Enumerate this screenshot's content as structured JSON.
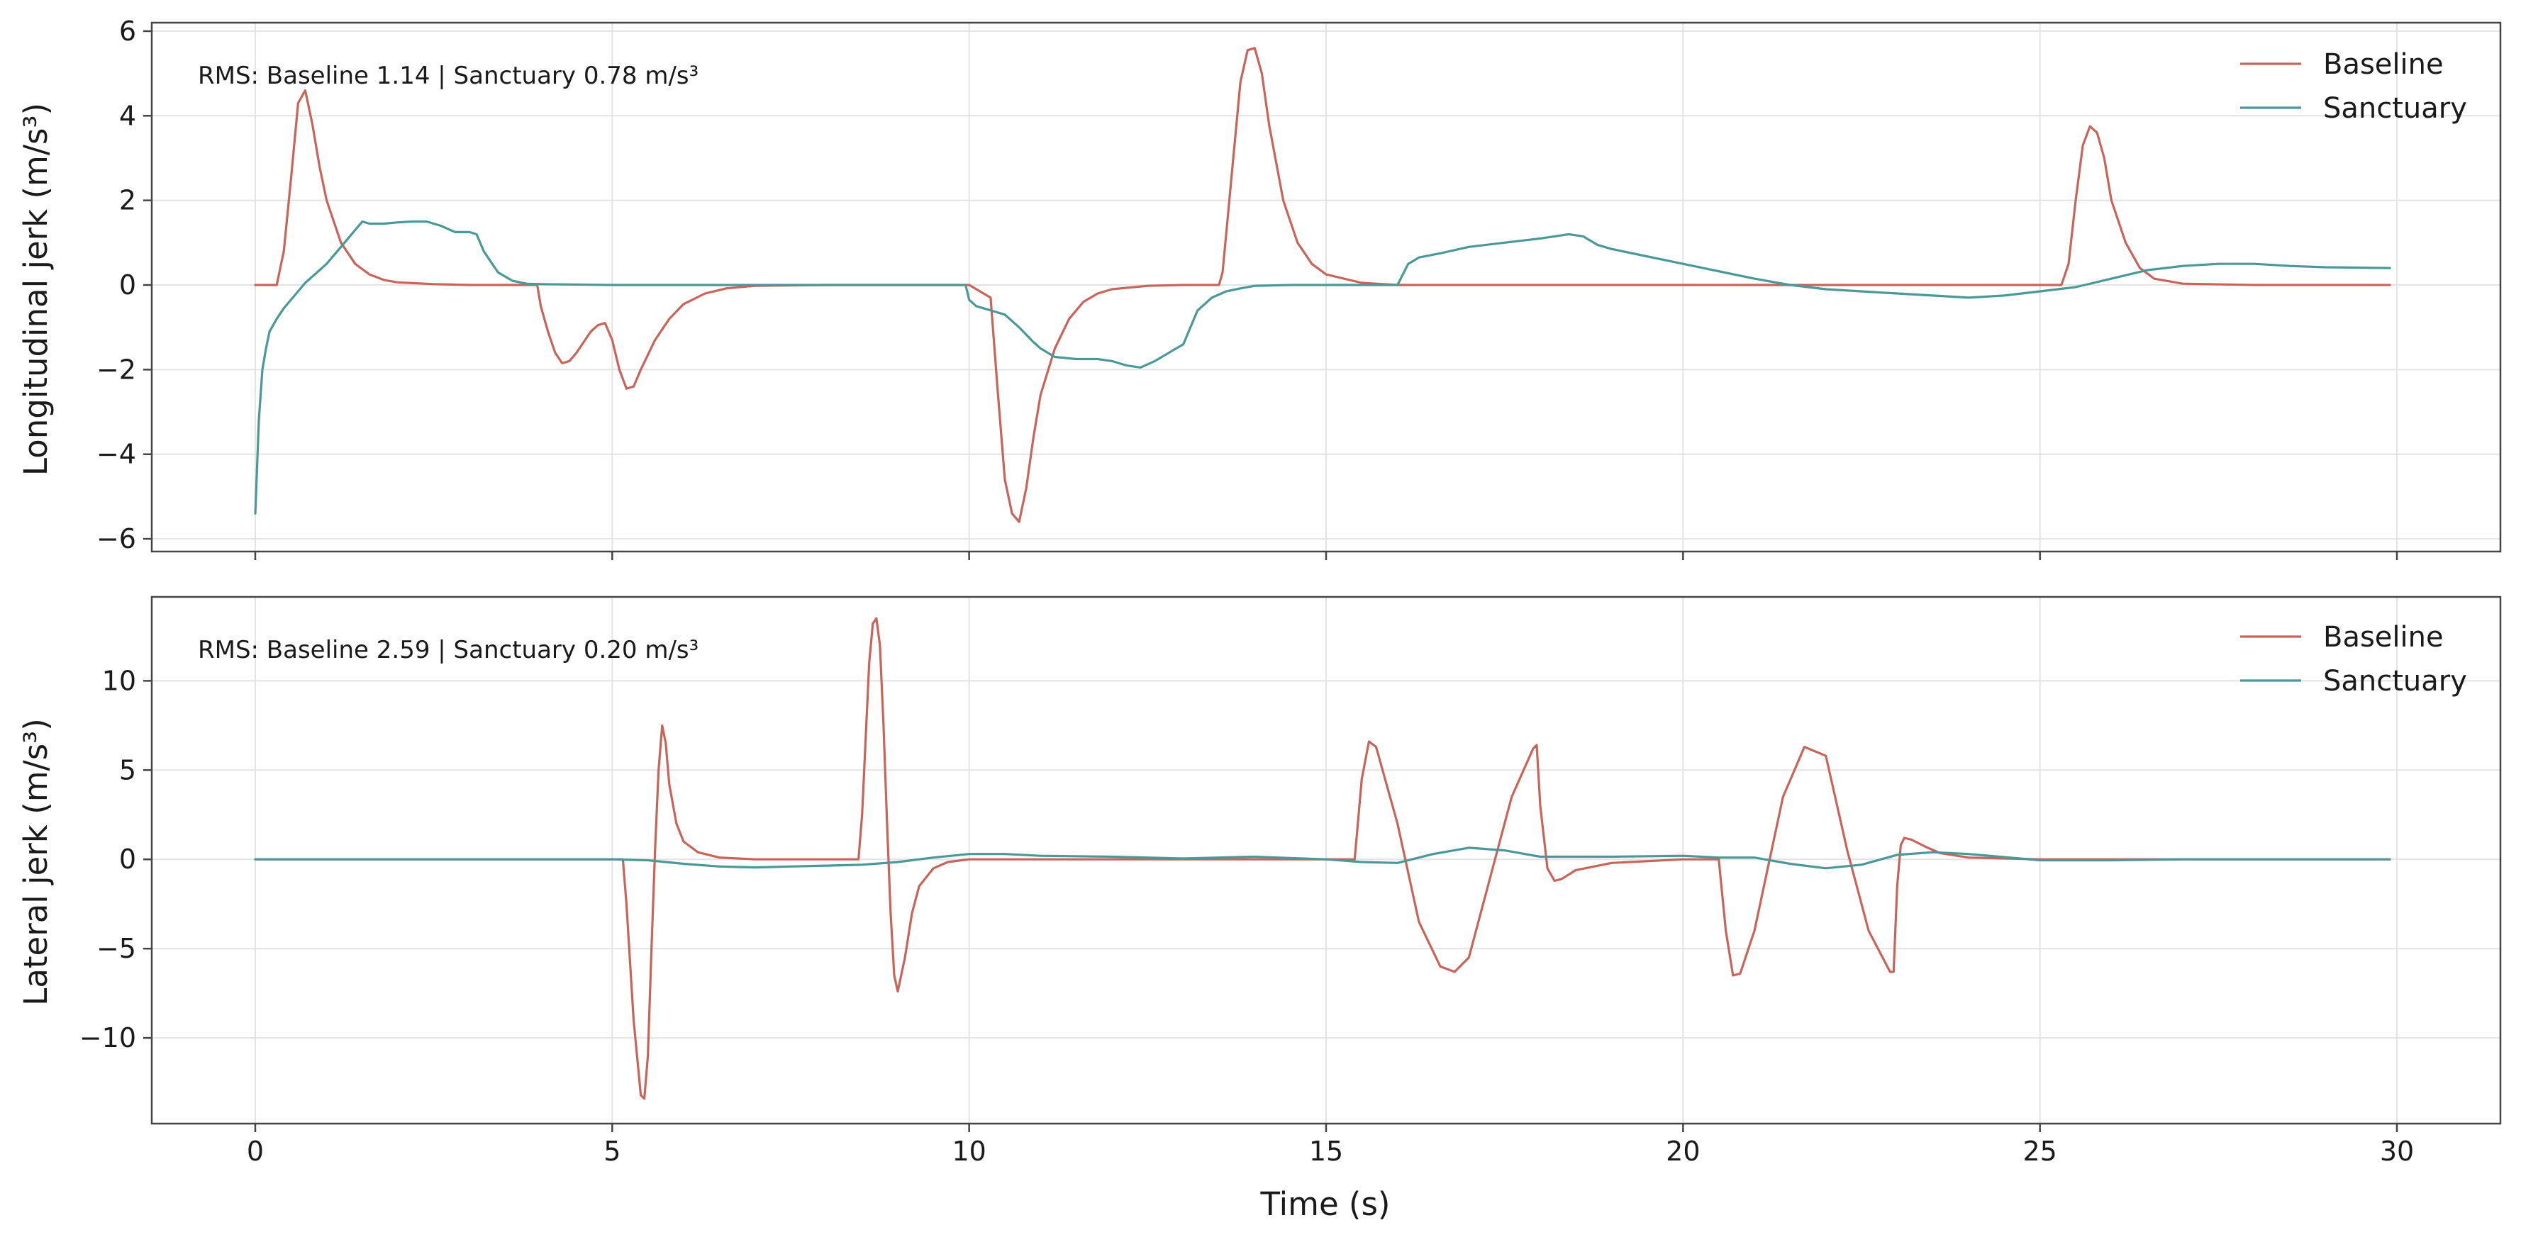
{
  "colors": {
    "baseline": "#c8645a",
    "sanctuary": "#4a9898",
    "grid": "#e3e3e3",
    "frame": "#444444"
  },
  "xlabel": "Time (s)",
  "chart_data": [
    {
      "type": "line",
      "ylabel": "Longitudinal jerk (m/s³)",
      "annotation": "RMS: Baseline 1.14  |  Sanctuary 0.78 m/s³",
      "xlim": [
        -1.45,
        31.45
      ],
      "ylim": [
        -6.3,
        6.2
      ],
      "xticks": [
        0,
        5,
        10,
        15,
        20,
        25,
        30
      ],
      "yticks": [
        -6,
        -4,
        -2,
        0,
        2,
        4,
        6
      ],
      "ytick_labels": [
        "−6",
        "−4",
        "−2",
        "0",
        "2",
        "4",
        "6"
      ],
      "grid": true,
      "legend_position": "top-right",
      "series": [
        {
          "name": "Baseline",
          "color": "#c8645a",
          "x": [
            0,
            0.3,
            0.4,
            0.5,
            0.6,
            0.7,
            0.8,
            0.9,
            1.0,
            1.2,
            1.4,
            1.6,
            1.8,
            2.0,
            2.5,
            3.0,
            3.5,
            3.95,
            4.0,
            4.1,
            4.2,
            4.3,
            4.4,
            4.5,
            4.6,
            4.7,
            4.8,
            4.9,
            5.0,
            5.1,
            5.2,
            5.3,
            5.4,
            5.6,
            5.8,
            6.0,
            6.3,
            6.6,
            7.0,
            8.0,
            9.0,
            10.0,
            10.3,
            10.4,
            10.5,
            10.6,
            10.7,
            10.8,
            10.9,
            11.0,
            11.2,
            11.4,
            11.6,
            11.8,
            12.0,
            12.5,
            13.0,
            13.5,
            13.55,
            13.6,
            13.7,
            13.8,
            13.9,
            14.0,
            14.1,
            14.2,
            14.4,
            14.6,
            14.8,
            15.0,
            15.5,
            16.0,
            20.0,
            25.3,
            25.4,
            25.5,
            25.6,
            25.7,
            25.8,
            25.9,
            26.0,
            26.2,
            26.4,
            26.6,
            27.0,
            28.0,
            29.9
          ],
          "y": [
            0,
            0,
            0.8,
            2.5,
            4.3,
            4.6,
            3.8,
            2.8,
            2.0,
            1.0,
            0.5,
            0.25,
            0.12,
            0.06,
            0.02,
            0,
            0,
            0,
            -0.5,
            -1.1,
            -1.6,
            -1.85,
            -1.8,
            -1.6,
            -1.35,
            -1.1,
            -0.95,
            -0.9,
            -1.3,
            -2.0,
            -2.45,
            -2.4,
            -2.0,
            -1.3,
            -0.8,
            -0.45,
            -0.2,
            -0.08,
            -0.02,
            0,
            0,
            0,
            -0.3,
            -2.5,
            -4.6,
            -5.4,
            -5.6,
            -4.8,
            -3.6,
            -2.6,
            -1.5,
            -0.8,
            -0.4,
            -0.2,
            -0.1,
            -0.02,
            0,
            0,
            0.3,
            1.2,
            3.0,
            4.8,
            5.55,
            5.6,
            5.0,
            3.8,
            2.0,
            1.0,
            0.5,
            0.25,
            0.05,
            0,
            0,
            0,
            0.5,
            2.0,
            3.3,
            3.75,
            3.6,
            3.0,
            2.0,
            1.0,
            0.4,
            0.15,
            0.03,
            0,
            0
          ]
        },
        {
          "name": "Sanctuary",
          "color": "#4a9898",
          "x": [
            0,
            0.05,
            0.1,
            0.15,
            0.2,
            0.3,
            0.4,
            0.5,
            0.6,
            0.7,
            0.8,
            1.0,
            1.2,
            1.4,
            1.5,
            1.6,
            1.8,
            2.0,
            2.2,
            2.4,
            2.6,
            2.8,
            3.0,
            3.1,
            3.2,
            3.4,
            3.6,
            3.8,
            4.0,
            5.0,
            9.95,
            10.0,
            10.1,
            10.3,
            10.5,
            10.7,
            10.9,
            11.0,
            11.2,
            11.5,
            11.8,
            12.0,
            12.2,
            12.4,
            12.6,
            12.8,
            13.0,
            13.1,
            13.2,
            13.4,
            13.6,
            13.8,
            14.0,
            14.5,
            15.0,
            15.5,
            16.0,
            16.15,
            16.3,
            16.6,
            17.0,
            17.5,
            18.0,
            18.4,
            18.6,
            18.8,
            19.0,
            20.0,
            21.0,
            21.5,
            22.0,
            22.5,
            23.0,
            23.5,
            24.0,
            24.5,
            25.0,
            25.5,
            26.0,
            26.5,
            27.0,
            27.5,
            28.0,
            28.5,
            29.0,
            29.9
          ],
          "y": [
            -5.4,
            -3.2,
            -2.0,
            -1.5,
            -1.1,
            -0.8,
            -0.55,
            -0.35,
            -0.15,
            0.05,
            0.2,
            0.5,
            0.9,
            1.3,
            1.5,
            1.45,
            1.45,
            1.48,
            1.5,
            1.5,
            1.4,
            1.25,
            1.25,
            1.2,
            0.8,
            0.3,
            0.1,
            0.03,
            0.02,
            0,
            0,
            -0.35,
            -0.5,
            -0.6,
            -0.7,
            -1.0,
            -1.35,
            -1.5,
            -1.7,
            -1.75,
            -1.75,
            -1.8,
            -1.9,
            -1.95,
            -1.8,
            -1.6,
            -1.4,
            -1.0,
            -0.6,
            -0.3,
            -0.15,
            -0.08,
            -0.02,
            0,
            0,
            0,
            0,
            0.5,
            0.65,
            0.75,
            0.9,
            1.0,
            1.1,
            1.2,
            1.15,
            0.95,
            0.85,
            0.5,
            0.15,
            0,
            -0.1,
            -0.15,
            -0.2,
            -0.25,
            -0.3,
            -0.25,
            -0.15,
            -0.05,
            0.15,
            0.35,
            0.45,
            0.5,
            0.5,
            0.45,
            0.42,
            0.4
          ]
        }
      ]
    },
    {
      "type": "line",
      "ylabel": "Lateral jerk (m/s³)",
      "annotation": "RMS: Baseline 2.59  |  Sanctuary 0.20 m/s³",
      "xlim": [
        -1.45,
        31.45
      ],
      "ylim": [
        -14.8,
        14.7
      ],
      "xticks": [
        0,
        5,
        10,
        15,
        20,
        25,
        30
      ],
      "yticks": [
        -10,
        -5,
        0,
        5,
        10
      ],
      "ytick_labels": [
        "−10",
        "−5",
        "0",
        "5",
        "10"
      ],
      "grid": true,
      "legend_position": "top-right",
      "series": [
        {
          "name": "Baseline",
          "color": "#c8645a",
          "x": [
            0,
            5.0,
            5.15,
            5.2,
            5.3,
            5.4,
            5.45,
            5.5,
            5.55,
            5.6,
            5.65,
            5.7,
            5.75,
            5.8,
            5.9,
            6.0,
            6.2,
            6.5,
            7.0,
            8.0,
            8.45,
            8.5,
            8.6,
            8.65,
            8.7,
            8.75,
            8.8,
            8.85,
            8.9,
            8.95,
            9.0,
            9.1,
            9.2,
            9.3,
            9.5,
            9.7,
            10.0,
            12.0,
            15.4,
            15.5,
            15.6,
            15.7,
            16.0,
            16.3,
            16.6,
            16.8,
            17.0,
            17.3,
            17.6,
            17.9,
            17.95,
            18.0,
            18.1,
            18.2,
            18.3,
            18.5,
            19.0,
            20.0,
            20.5,
            20.6,
            20.7,
            20.8,
            21.0,
            21.4,
            21.7,
            22.0,
            22.3,
            22.6,
            22.9,
            22.95,
            23.0,
            23.05,
            23.1,
            23.2,
            23.4,
            23.6,
            24.0,
            25.0,
            29.9
          ],
          "y": [
            0,
            0,
            0,
            -2.5,
            -9.0,
            -13.2,
            -13.4,
            -11.0,
            -5.0,
            0.5,
            5.0,
            7.5,
            6.5,
            4.2,
            2.0,
            1.0,
            0.4,
            0.1,
            0,
            0,
            0,
            2.5,
            11.0,
            13.2,
            13.5,
            12.0,
            7.5,
            2.0,
            -3.0,
            -6.5,
            -7.4,
            -5.5,
            -3.0,
            -1.5,
            -0.5,
            -0.15,
            0,
            0,
            0,
            4.5,
            6.6,
            6.3,
            2.0,
            -3.5,
            -6.0,
            -6.3,
            -5.5,
            -1.0,
            3.5,
            6.2,
            6.4,
            3.0,
            -0.5,
            -1.2,
            -1.1,
            -0.6,
            -0.2,
            0,
            0,
            -4.0,
            -6.5,
            -6.4,
            -4.0,
            3.5,
            6.3,
            5.8,
            0.5,
            -4.0,
            -6.3,
            -6.3,
            -1.5,
            0.8,
            1.2,
            1.1,
            0.7,
            0.35,
            0.1,
            0,
            0
          ]
        },
        {
          "name": "Sanctuary",
          "color": "#4a9898",
          "x": [
            0,
            5.0,
            5.5,
            6.0,
            6.5,
            7.0,
            7.5,
            8.0,
            8.5,
            9.0,
            9.5,
            10.0,
            10.5,
            11.0,
            12.0,
            13.0,
            14.0,
            15.0,
            15.5,
            16.0,
            16.5,
            17.0,
            17.5,
            18.0,
            19.0,
            20.0,
            20.5,
            21.0,
            21.5,
            22.0,
            22.5,
            23.0,
            23.5,
            24.0,
            25.0,
            26.0,
            27.0,
            29.9
          ],
          "y": [
            0,
            0,
            -0.05,
            -0.25,
            -0.4,
            -0.45,
            -0.4,
            -0.35,
            -0.3,
            -0.15,
            0.1,
            0.3,
            0.3,
            0.2,
            0.15,
            0.05,
            0.15,
            0,
            -0.15,
            -0.2,
            0.3,
            0.65,
            0.5,
            0.15,
            0.15,
            0.2,
            0.1,
            0.1,
            -0.25,
            -0.5,
            -0.3,
            0.25,
            0.4,
            0.3,
            -0.05,
            -0.05,
            0,
            0
          ]
        }
      ]
    }
  ]
}
